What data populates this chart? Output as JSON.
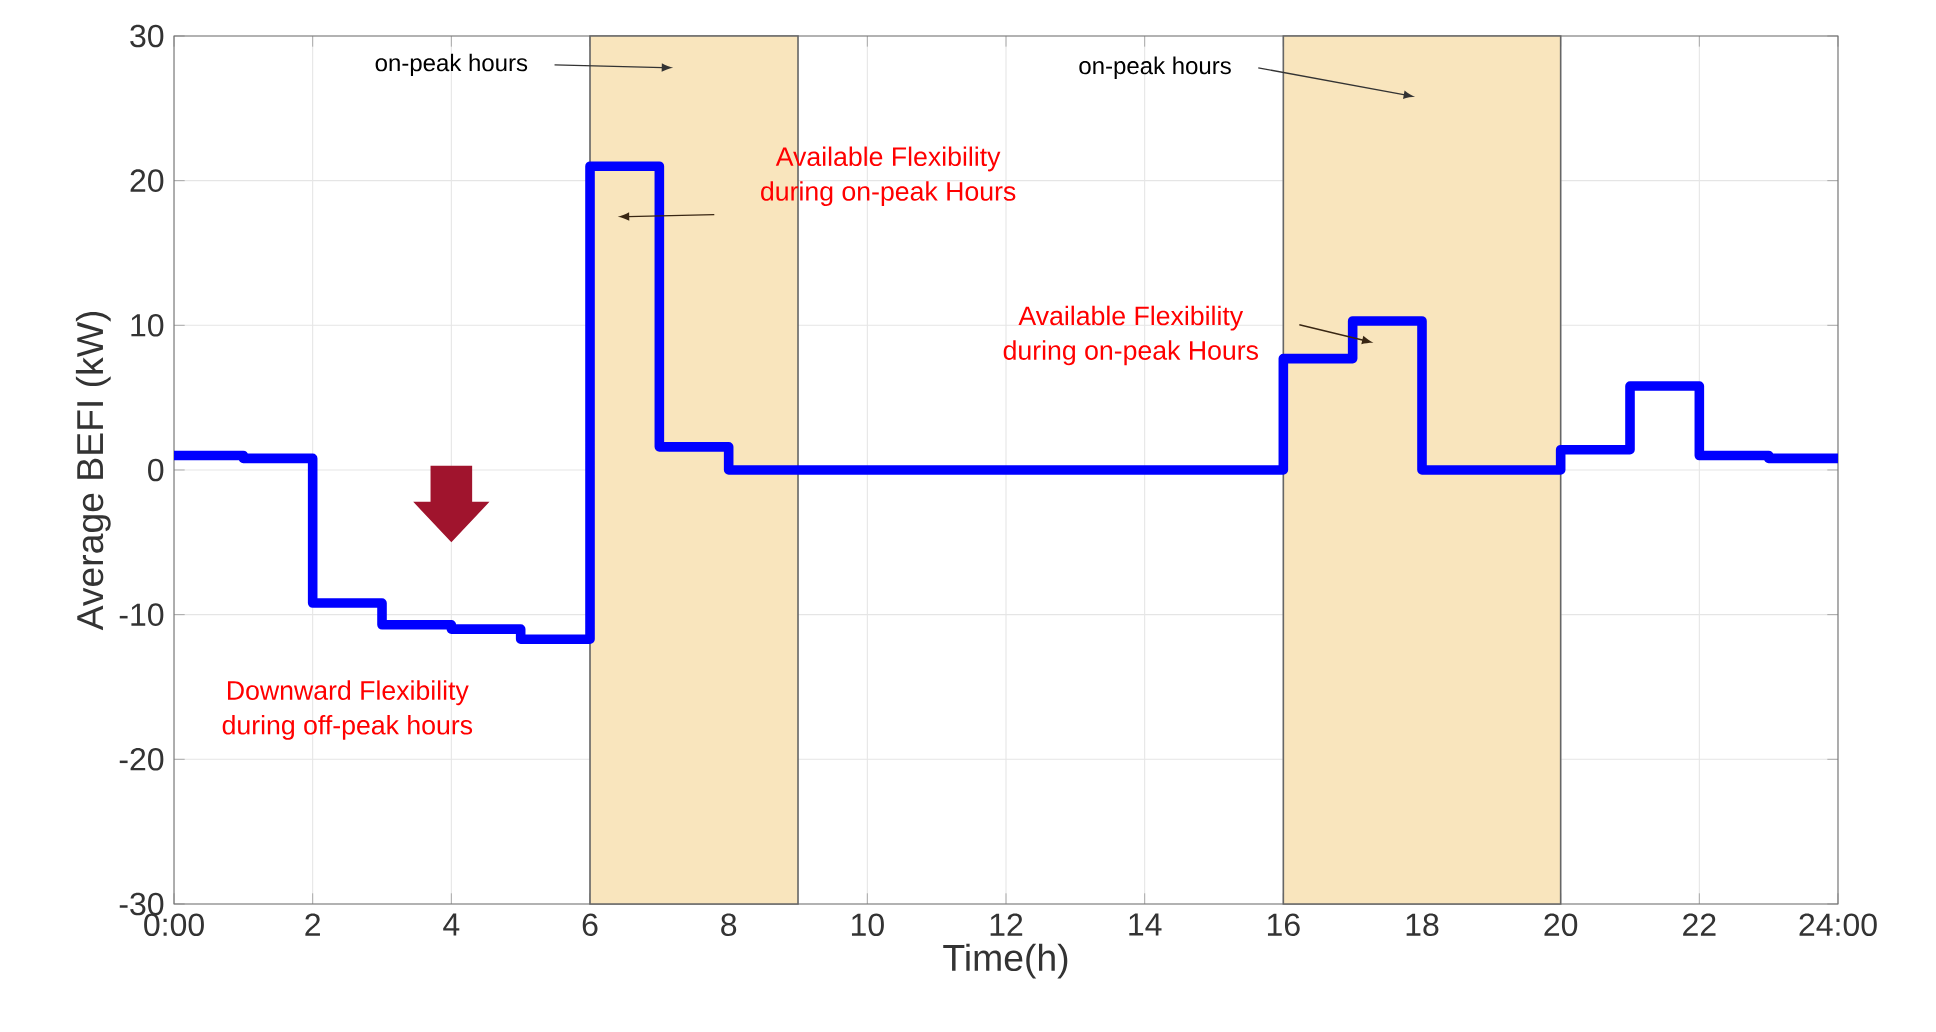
{
  "chart_data": {
    "type": "step",
    "xlabel": "Time(h)",
    "ylabel": "Average BEFI (kW)",
    "x": [
      0,
      1,
      2,
      3,
      4,
      5,
      6,
      7,
      8,
      9,
      10,
      11,
      12,
      13,
      14,
      15,
      16,
      17,
      18,
      19,
      20,
      21,
      22,
      23,
      24
    ],
    "series": [
      {
        "color": "#0000ff",
        "values": [
          1.0,
          0.8,
          -9.2,
          -10.7,
          -11.0,
          -11.7,
          21.0,
          1.6,
          0,
          0,
          0,
          0,
          0,
          0,
          0,
          0,
          7.7,
          10.3,
          0,
          0,
          1.4,
          5.8,
          1.0,
          0.8,
          0.8
        ]
      }
    ],
    "xlim": [
      0,
      24
    ],
    "ylim": [
      -30,
      30
    ],
    "xticks": [
      {
        "value": 0,
        "label": "0:00"
      },
      2,
      4,
      6,
      8,
      10,
      12,
      14,
      16,
      18,
      20,
      22,
      {
        "value": 24,
        "label": "24:00"
      }
    ],
    "yticks": [
      -30,
      -20,
      -10,
      0,
      10,
      20,
      30
    ],
    "grid": true,
    "line_style": "solid",
    "marker": "none",
    "bands": [
      {
        "axis": "x",
        "from": 6,
        "to": 9,
        "color": "#f9e5bd"
      },
      {
        "axis": "x",
        "from": 16,
        "to": 20,
        "color": "#f9e5bd"
      }
    ],
    "annotations": [
      "on-peak hours",
      "on-peak hours",
      "Available Flexibility\nduring on-peak Hours",
      "Available Flexibility\nduring on-peak Hours",
      "Downward Flexibility\nduring off-peak hours"
    ]
  }
}
